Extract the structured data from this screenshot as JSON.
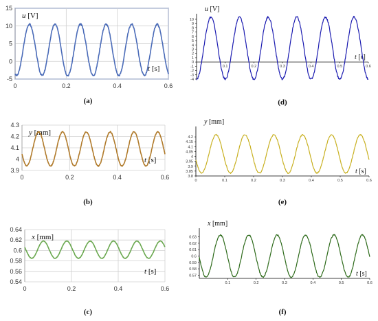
{
  "chart_data": [
    {
      "id": "a",
      "caption": "(a)",
      "type": "line",
      "style": "excel",
      "color": "#4a6bb8",
      "framed": true,
      "ylabel": "u [V]",
      "xlabel": "t [s]",
      "xlim": [
        0,
        0.6
      ],
      "ylim": [
        -5,
        15
      ],
      "xticks": [
        0,
        0.2,
        0.4,
        0.6
      ],
      "xtick_labels": [
        "0",
        "0.2",
        "0.4",
        "0.6"
      ],
      "yticks": [
        -5,
        0,
        5,
        10,
        15
      ],
      "ytick_labels": [
        "-5",
        "0",
        "5",
        "10",
        "15"
      ],
      "series": [
        {
          "period": 0.1,
          "phase": 0.006,
          "min": -4,
          "max": 10.5
        }
      ]
    },
    {
      "id": "d",
      "caption": "(d)",
      "type": "line",
      "style": "maple",
      "color": "#1a1ab0",
      "ylabel": "u [V]",
      "xlabel": "t [s]",
      "xlim": [
        0,
        0.6
      ],
      "ylim": [
        -4,
        10
      ],
      "xticks": [
        0.1,
        0.2,
        0.3,
        0.4,
        0.5,
        0.6
      ],
      "xtick_labels": [
        "0.1",
        "0.2",
        "0.3",
        "0.4",
        "0.5",
        "0.6"
      ],
      "yticks": [
        -4,
        -3,
        -2,
        -1,
        0,
        1,
        2,
        3,
        4,
        5,
        6,
        7,
        8,
        9,
        10
      ],
      "ytick_labels": [
        "-4",
        "-3",
        "-2",
        "-1",
        "0",
        "1",
        "2",
        "3",
        "4",
        "5",
        "6",
        "7",
        "8",
        "9",
        "10"
      ],
      "series": [
        {
          "period": 0.1,
          "phase": 0.0,
          "min": -4,
          "max": 10.5
        }
      ]
    },
    {
      "id": "b",
      "caption": "(b)",
      "type": "line",
      "style": "excel",
      "color": "#b07a2a",
      "ylabel": "y [mm]",
      "xlabel": "t [s]",
      "xlim": [
        0,
        0.6
      ],
      "ylim": [
        3.9,
        4.3
      ],
      "xticks": [
        0,
        0.2,
        0.4,
        0.6
      ],
      "xtick_labels": [
        "0",
        "0.2",
        "0.4",
        "0.6"
      ],
      "yticks": [
        3.9,
        4,
        4.1,
        4.2,
        4.3
      ],
      "ytick_labels": [
        "3.9",
        "4",
        "4.1",
        "4.2",
        "4.3"
      ],
      "series": [
        {
          "period": 0.1,
          "phase": 0.02,
          "min": 3.94,
          "max": 4.24
        }
      ]
    },
    {
      "id": "e",
      "caption": "(e)",
      "type": "line",
      "style": "maple",
      "color": "#c8b020",
      "ylabel": "y [mm]",
      "xlabel": "t [s]",
      "xlim": [
        0,
        0.6
      ],
      "ylim": [
        3.8,
        4.25
      ],
      "xticks": [
        0,
        0.1,
        0.2,
        0.3,
        0.4,
        0.5,
        0.6
      ],
      "xtick_labels": [
        "0",
        "0.1",
        "0.2",
        "0.3",
        "0.4",
        "0.5",
        "0.6"
      ],
      "yticks": [
        3.8,
        3.85,
        3.9,
        3.95,
        4,
        4.05,
        4.1,
        4.15,
        4.2
      ],
      "ytick_labels": [
        "3.8",
        "3.85",
        "3.9",
        "3.95",
        "4",
        "4.05",
        "4.1",
        "4.15",
        "4.2"
      ],
      "series": [
        {
          "period": 0.1,
          "phase": 0.02,
          "min": 3.83,
          "max": 4.22
        }
      ]
    },
    {
      "id": "c",
      "caption": "(c)",
      "type": "line",
      "style": "excel",
      "color": "#6aa84f",
      "ylabel": "x [mm]",
      "xlabel": "t [s]",
      "xlim": [
        0,
        0.6
      ],
      "ylim": [
        0.54,
        0.64
      ],
      "xticks": [
        0,
        0.2,
        0.4,
        0.6
      ],
      "xtick_labels": [
        "0",
        "0.2",
        "0.4",
        "0.6"
      ],
      "yticks": [
        0.54,
        0.56,
        0.58,
        0.6,
        0.62,
        0.64
      ],
      "ytick_labels": [
        "0.54",
        "0.56",
        "0.58",
        "0.6",
        "0.62",
        "0.64"
      ],
      "series": [
        {
          "period": 0.1,
          "phase": 0.03,
          "min": 0.585,
          "max": 0.618
        }
      ]
    },
    {
      "id": "f",
      "caption": "(f)",
      "type": "line",
      "style": "maple",
      "color": "#2d6a1a",
      "ylabel": "x [mm]",
      "xlabel": "t [s]",
      "xlim": [
        0,
        0.6
      ],
      "ylim": [
        0.565,
        0.635
      ],
      "xticks": [
        0.1,
        0.2,
        0.3,
        0.4,
        0.5,
        0.6
      ],
      "xtick_labels": [
        "0.1",
        "0.2",
        "0.3",
        "0.4",
        "0.5",
        "0.6"
      ],
      "yticks": [
        0.57,
        0.58,
        0.59,
        0.6,
        0.61,
        0.62,
        0.63
      ],
      "ytick_labels": [
        "0.57",
        "0.58",
        "0.59",
        "0.6",
        "0.61",
        "0.62",
        "0.63"
      ],
      "series": [
        {
          "period": 0.1,
          "phase": 0.024,
          "min": 0.567,
          "max": 0.633
        }
      ]
    }
  ]
}
